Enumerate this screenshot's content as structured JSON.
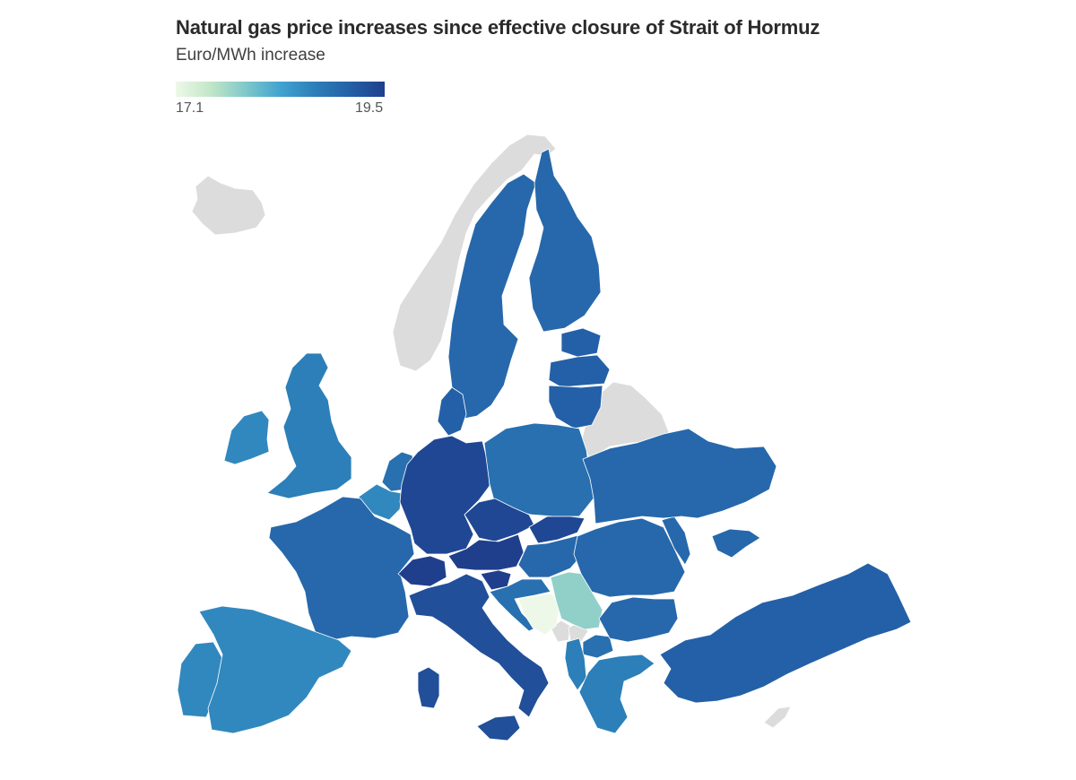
{
  "title": "Natural gas price increases since effective closure of Strait of Hormuz",
  "subtitle": "Euro/MWh increase",
  "legend": {
    "min_label": "17.1",
    "max_label": "19.5",
    "min": 17.1,
    "max": 19.5,
    "gradient": [
      "#eef8e8",
      "#c2e6c8",
      "#7fc9c9",
      "#41a3cf",
      "#2c7fb8",
      "#2460a7",
      "#1f3f8c"
    ]
  },
  "colors": {
    "no_data": "#dcdcdc",
    "border": "#ffffff"
  },
  "countries": [
    {
      "name": "Iceland",
      "value": null
    },
    {
      "name": "Norway",
      "value": null
    },
    {
      "name": "Belarus",
      "value": null
    },
    {
      "name": "Serbia",
      "value": 17.8
    },
    {
      "name": "Bosnia and Herzegovina",
      "value": 17.1
    },
    {
      "name": "Montenegro",
      "value": null
    },
    {
      "name": "Kosovo",
      "value": null
    },
    {
      "name": "Sweden",
      "value": 19.0
    },
    {
      "name": "Finland",
      "value": 19.0
    },
    {
      "name": "Estonia",
      "value": 19.1
    },
    {
      "name": "Latvia",
      "value": 19.1
    },
    {
      "name": "Lithuania",
      "value": 19.1
    },
    {
      "name": "Denmark",
      "value": 19.1
    },
    {
      "name": "Ireland",
      "value": 18.6
    },
    {
      "name": "United Kingdom",
      "value": 18.7
    },
    {
      "name": "Netherlands",
      "value": 18.9
    },
    {
      "name": "Belgium",
      "value": 18.6
    },
    {
      "name": "France",
      "value": 19.0
    },
    {
      "name": "Germany",
      "value": 19.4
    },
    {
      "name": "Poland",
      "value": 18.9
    },
    {
      "name": "Czech Republic",
      "value": 19.4
    },
    {
      "name": "Slovakia",
      "value": 19.4
    },
    {
      "name": "Austria",
      "value": 19.5
    },
    {
      "name": "Switzerland",
      "value": 19.5
    },
    {
      "name": "Slovenia",
      "value": 19.5
    },
    {
      "name": "Hungary",
      "value": 19.0
    },
    {
      "name": "Croatia",
      "value": 18.9
    },
    {
      "name": "Italy",
      "value": 19.3
    },
    {
      "name": "Spain",
      "value": 18.6
    },
    {
      "name": "Portugal",
      "value": 18.6
    },
    {
      "name": "Romania",
      "value": 19.0
    },
    {
      "name": "Moldova",
      "value": 19.0
    },
    {
      "name": "Ukraine",
      "value": 19.0
    },
    {
      "name": "Bulgaria",
      "value": 19.0
    },
    {
      "name": "North Macedonia",
      "value": 18.9
    },
    {
      "name": "Albania",
      "value": 18.7
    },
    {
      "name": "Greece",
      "value": 18.7
    },
    {
      "name": "Turkey",
      "value": 19.1
    },
    {
      "name": "Cyprus",
      "value": null
    }
  ]
}
